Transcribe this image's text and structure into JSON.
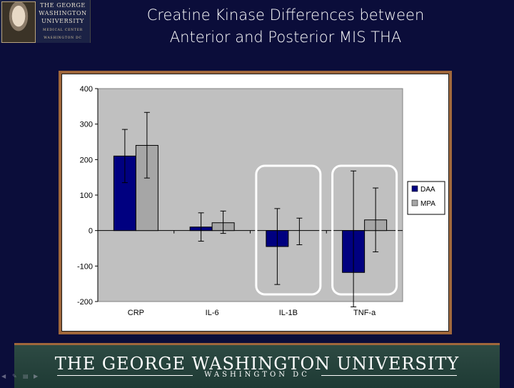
{
  "slide": {
    "title_line1": "Creatine Kinase Differences between",
    "title_line2": "Anterior and Posterior MIS THA"
  },
  "logo": {
    "line1": "THE GEORGE",
    "line2": "WASHINGTON",
    "line3": "UNIVERSITY",
    "line4": "MEDICAL CENTER",
    "line5": "WASHINGTON DC"
  },
  "footer": {
    "title": "THE GEORGE WASHINGTON UNIVERSITY",
    "subtitle": "WASHINGTON DC"
  },
  "colors": {
    "daa": "#000080",
    "mpa": "#a6a6a6",
    "plot_bg": "#c0c0c0",
    "highlight": "#ffffff"
  },
  "chart_data": {
    "type": "bar",
    "categories": [
      "CRP",
      "IL-6",
      "IL-1B",
      "TNF-a"
    ],
    "series": [
      {
        "name": "DAA",
        "values": [
          210,
          10,
          -45,
          -118
        ],
        "err_low": [
          135,
          -30,
          -152,
          -215
        ],
        "err_high": [
          285,
          50,
          62,
          168
        ]
      },
      {
        "name": "MPA",
        "values": [
          240,
          22,
          0,
          30
        ],
        "err_low": [
          148,
          -8,
          -40,
          -60
        ],
        "err_high": [
          333,
          55,
          35,
          120
        ]
      }
    ],
    "ylim": [
      -200,
      400
    ],
    "yticks": [
      -200,
      -100,
      0,
      100,
      200,
      300,
      400
    ],
    "grid": false,
    "legend": "right",
    "highlighted_categories": [
      "IL-1B",
      "TNF-a"
    ]
  }
}
